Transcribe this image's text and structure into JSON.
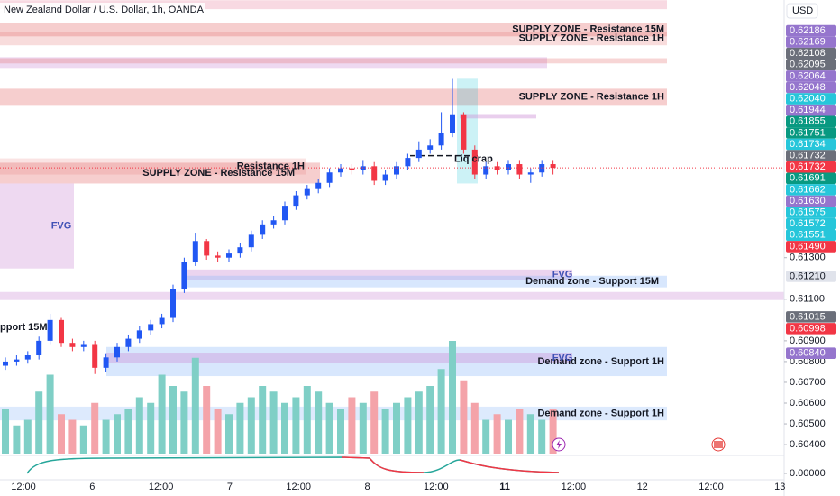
{
  "chart_data": {
    "type": "candlestick",
    "title": "New Zealand Dollar / U.S. Dollar, 1h, OANDA",
    "currency": "USD",
    "up_color": "#2157f3",
    "down_color": "#f23645",
    "volume_up_color": "#7fcfc6",
    "volume_down_color": "#f4a3a9",
    "ylim": [
      0.6037,
      0.6254
    ],
    "yticks": [
      {
        "value": 0.613,
        "label": "0.61300"
      },
      {
        "value": 0.611,
        "label": "0.61100"
      },
      {
        "value": 0.609,
        "label": "0.60900"
      },
      {
        "value": 0.608,
        "label": "0.60800"
      },
      {
        "value": 0.607,
        "label": "0.60700"
      },
      {
        "value": 0.606,
        "label": "0.60600"
      },
      {
        "value": 0.605,
        "label": "0.60500"
      },
      {
        "value": 0.604,
        "label": "0.60400"
      }
    ],
    "indicator_yticks": [
      {
        "value": 0,
        "label": "0.00000"
      }
    ],
    "x_labels": [
      "12:00",
      "6",
      "12:00",
      "7",
      "12:00",
      "8",
      "12:00",
      "11",
      "12:00",
      "12",
      "12:00",
      "13"
    ],
    "open": [
      0.6078,
      0.608,
      0.6081,
      0.6083,
      0.609,
      0.61,
      0.6089,
      0.6087,
      0.6088,
      0.6077,
      0.6082,
      0.6087,
      0.6091,
      0.6095,
      0.6098,
      0.6101,
      0.6115,
      0.6128,
      0.6138,
      0.6131,
      0.613,
      0.6132,
      0.6135,
      0.6141,
      0.6146,
      0.6148,
      0.6155,
      0.616,
      0.6163,
      0.6166,
      0.6171,
      0.6173,
      0.6172,
      0.6174,
      0.6167,
      0.617,
      0.6174,
      0.6178,
      0.6182,
      0.6184,
      0.619,
      0.6199,
      0.6182,
      0.617,
      0.6174,
      0.6172,
      0.6175,
      0.617,
      0.6171,
      0.6175
    ],
    "high": [
      0.6082,
      0.6083,
      0.6085,
      0.6092,
      0.6103,
      0.6101,
      0.6091,
      0.609,
      0.609,
      0.6084,
      0.6089,
      0.6093,
      0.6097,
      0.61,
      0.6103,
      0.6117,
      0.613,
      0.6142,
      0.6139,
      0.6133,
      0.6134,
      0.6137,
      0.6143,
      0.6148,
      0.615,
      0.6157,
      0.6162,
      0.6165,
      0.6168,
      0.6173,
      0.6175,
      0.6175,
      0.6177,
      0.6176,
      0.6172,
      0.6176,
      0.618,
      0.6186,
      0.6187,
      0.62,
      0.6216,
      0.62,
      0.6184,
      0.6176,
      0.6176,
      0.6177,
      0.6177,
      0.6173,
      0.6177,
      0.6177
    ],
    "low": [
      0.6076,
      0.6078,
      0.6079,
      0.6081,
      0.6088,
      0.6087,
      0.6085,
      0.6085,
      0.6074,
      0.6075,
      0.608,
      0.6085,
      0.6089,
      0.6093,
      0.6096,
      0.6099,
      0.6113,
      0.6126,
      0.6129,
      0.6128,
      0.6128,
      0.613,
      0.6133,
      0.6139,
      0.6144,
      0.6146,
      0.6153,
      0.6158,
      0.6161,
      0.6164,
      0.6169,
      0.617,
      0.617,
      0.6165,
      0.6165,
      0.6168,
      0.6172,
      0.6176,
      0.618,
      0.6182,
      0.6188,
      0.618,
      0.6168,
      0.6168,
      0.617,
      0.617,
      0.6168,
      0.6166,
      0.6169,
      0.617
    ],
    "close": [
      0.608,
      0.6081,
      0.6083,
      0.609,
      0.61,
      0.6089,
      0.6087,
      0.6088,
      0.6077,
      0.6082,
      0.6087,
      0.6091,
      0.6095,
      0.6098,
      0.6101,
      0.6115,
      0.6128,
      0.6138,
      0.6131,
      0.613,
      0.6132,
      0.6135,
      0.6141,
      0.6146,
      0.6148,
      0.6155,
      0.616,
      0.6163,
      0.6166,
      0.6171,
      0.6173,
      0.6172,
      0.6174,
      0.6167,
      0.617,
      0.6174,
      0.6178,
      0.6182,
      0.6184,
      0.619,
      0.6199,
      0.6182,
      0.617,
      0.6174,
      0.6172,
      0.6175,
      0.617,
      0.6171,
      0.6175,
      0.61732
    ],
    "volume": [
      40,
      25,
      30,
      55,
      70,
      35,
      30,
      25,
      45,
      30,
      35,
      40,
      50,
      45,
      70,
      60,
      55,
      85,
      60,
      40,
      35,
      45,
      50,
      60,
      55,
      45,
      50,
      60,
      55,
      45,
      40,
      50,
      45,
      55,
      40,
      45,
      50,
      55,
      60,
      75,
      100,
      65,
      45,
      30,
      35,
      30,
      40,
      35,
      30,
      40
    ],
    "current_price": 0.61732,
    "zones": [
      {
        "top": 0.62539,
        "bottom": 0.62496,
        "color": "rgba(240,170,190,0.45)"
      },
      {
        "top": 0.6243,
        "bottom": 0.62365,
        "color": "rgba(229,115,115,0.35)",
        "label": "SUPPLY ZONE - Resistance 15M"
      },
      {
        "top": 0.62387,
        "bottom": 0.62322,
        "color": "rgba(229,115,115,0.25)",
        "label": "SUPPLY ZONE - Resistance 1H"
      },
      {
        "top": 0.62265,
        "bottom": 0.62213,
        "color": "rgba(206,147,216,0.35)"
      },
      {
        "top": 0.6226,
        "bottom": 0.62235,
        "color": "rgba(229,115,115,0.3)"
      },
      {
        "top": 0.62113,
        "bottom": 0.62035,
        "color": "rgba(229,115,115,0.35)",
        "label": "SUPPLY ZONE - Resistance 1H"
      },
      {
        "top": 0.61757,
        "bottom": 0.61657,
        "color": "rgba(229,115,115,0.35)",
        "label": "SUPPLY ZONE - Resistance 15M"
      },
      {
        "top": 0.61778,
        "bottom": 0.617,
        "color": "rgba(229,115,115,0.2)",
        "label": "Resistance 1H"
      },
      {
        "top": 0.61657,
        "bottom": 0.61248,
        "color": "rgba(206,147,216,0.35)",
        "label": "FVG"
      },
      {
        "top": 0.61243,
        "bottom": 0.61191,
        "color": "rgba(206,147,216,0.4)",
        "label": "FVG"
      },
      {
        "top": 0.61213,
        "bottom": 0.61157,
        "color": "rgba(144,187,249,0.35)",
        "label": "Demand zone - Support 15M"
      },
      {
        "top": 0.61135,
        "bottom": 0.61096,
        "color": "rgba(206,147,216,0.35)"
      },
      {
        "top": 0.6087,
        "bottom": 0.6073,
        "color": "rgba(144,187,249,0.35)",
        "label": "Demand zone - Support 1H"
      },
      {
        "top": 0.60843,
        "bottom": 0.60791,
        "color": "rgba(206,147,216,0.4)",
        "label": "FVG"
      },
      {
        "top": 0.60583,
        "bottom": 0.60517,
        "color": "rgba(144,187,249,0.3)",
        "label": "Demand zone - Support 1H"
      },
      {
        "top": 0.62161,
        "bottom": 0.61657,
        "color": "rgba(0,188,212,0.2)"
      },
      {
        "top": 0.61991,
        "bottom": 0.6197,
        "color": "rgba(206,147,216,0.45)"
      }
    ],
    "annotations": [
      {
        "text": "pport 15M",
        "price": 0.60965
      },
      {
        "text": "Liq crap",
        "price": 0.61774
      }
    ],
    "levels": [
      0.61791
    ],
    "price_labels": [
      {
        "value": 0.62186,
        "label": "0.62186",
        "color": "#9575cd"
      },
      {
        "value": 0.62169,
        "label": "0.62169",
        "color": "#9575cd"
      },
      {
        "value": 0.62108,
        "label": "0.62108",
        "color": "#6b6f7a"
      },
      {
        "value": 0.62095,
        "label": "0.62095",
        "color": "#6b6f7a"
      },
      {
        "value": 0.62064,
        "label": "0.62064",
        "color": "#9575cd"
      },
      {
        "value": 0.62048,
        "label": "0.62048",
        "color": "#9575cd"
      },
      {
        "value": 0.6204,
        "label": "0.62040",
        "color": "#26c6da"
      },
      {
        "value": 0.61944,
        "label": "0.61944",
        "color": "#9575cd"
      },
      {
        "value": 0.61855,
        "label": "0.61855",
        "color": "#089981"
      },
      {
        "value": 0.61751,
        "label": "0.61751",
        "color": "#089981"
      },
      {
        "value": 0.61734,
        "label": "0.61734",
        "color": "#26c6da"
      },
      {
        "value": 0.61732,
        "label": "0.61732",
        "color": "#6b6f7a"
      },
      {
        "value": 0.61732,
        "label": "0.61732",
        "color": "#f23645"
      },
      {
        "value": 0.61691,
        "label": "0.61691",
        "color": "#089981"
      },
      {
        "value": 0.61662,
        "label": "0.61662",
        "color": "#26c6da"
      },
      {
        "value": 0.6163,
        "label": "0.61630",
        "color": "#9575cd"
      },
      {
        "value": 0.61575,
        "label": "0.61575",
        "color": "#26c6da"
      },
      {
        "value": 0.61572,
        "label": "0.61572",
        "color": "#26c6da"
      },
      {
        "value": 0.61551,
        "label": "0.61551",
        "color": "#26c6da"
      },
      {
        "value": 0.6149,
        "label": "0.61490",
        "color": "#f23645"
      },
      {
        "value": 0.6121,
        "label": "0.61210",
        "color": "#e0e3eb"
      },
      {
        "value": 0.61015,
        "label": "0.61015",
        "color": "#6b6f7a"
      },
      {
        "value": 0.60998,
        "label": "0.60998",
        "color": "#f23645"
      },
      {
        "value": 0.6084,
        "label": "0.60840",
        "color": "#9575cd"
      }
    ]
  }
}
